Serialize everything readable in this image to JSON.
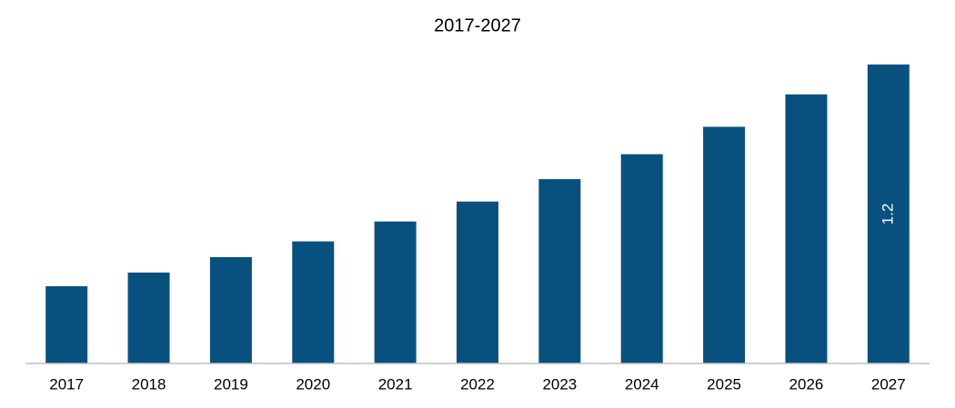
{
  "chart_data": {
    "type": "bar",
    "title": "2017-2027",
    "categories": [
      "2017",
      "2018",
      "2019",
      "2020",
      "2021",
      "2022",
      "2023",
      "2024",
      "2025",
      "2026",
      "2027"
    ],
    "values": [
      0.31,
      0.365,
      0.427,
      0.49,
      0.57,
      0.65,
      0.74,
      0.84,
      0.95,
      1.08,
      1.2
    ],
    "color": "#08517f"
  }
}
